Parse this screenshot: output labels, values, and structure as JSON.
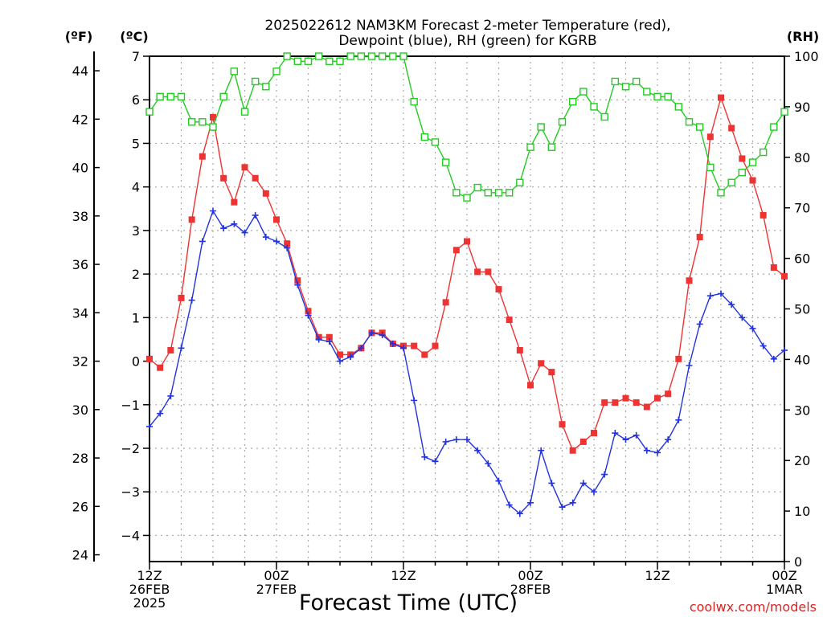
{
  "chart_data": {
    "type": "line",
    "title_line1": "2025022612 NAM3KM Forecast 2-meter Temperature (red),",
    "title_line2": "Dewpoint (blue), RH (green) for KGRB",
    "xlabel": "Forecast Time (UTC)",
    "credit": "coolwx.com/models",
    "unit_f": "(ºF)",
    "unit_c": "(ºC)",
    "unit_rh": "(RH)",
    "x_ticks": [
      {
        "h": 0,
        "lines": [
          "12Z",
          "26FEB",
          "2025"
        ]
      },
      {
        "h": 12,
        "lines": [
          "00Z",
          "27FEB"
        ]
      },
      {
        "h": 24,
        "lines": [
          "12Z"
        ]
      },
      {
        "h": 36,
        "lines": [
          "00Z",
          "28FEB"
        ]
      },
      {
        "h": 48,
        "lines": [
          "12Z"
        ]
      },
      {
        "h": 60,
        "lines": [
          "00Z",
          "1MAR"
        ]
      }
    ],
    "x_range_hours": [
      0,
      60
    ],
    "c_ticks": [
      -4,
      -3,
      -2,
      -1,
      0,
      1,
      2,
      3,
      4,
      5,
      6,
      7
    ],
    "c_range": [
      -4.6,
      7
    ],
    "f_ticks": [
      24,
      26,
      28,
      30,
      32,
      34,
      36,
      38,
      40,
      42,
      44
    ],
    "rh_ticks": [
      0,
      10,
      20,
      30,
      40,
      50,
      60,
      70,
      80,
      90,
      100
    ],
    "rh_range": [
      0,
      100
    ],
    "colors": {
      "temperature": "#ee3333",
      "dewpoint": "#2233dd",
      "rh": "#22cc22",
      "grid": "#aaaaaa",
      "credit": "#dd2222"
    },
    "hours": [
      0,
      1,
      2,
      3,
      4,
      5,
      6,
      7,
      8,
      9,
      10,
      11,
      12,
      13,
      14,
      15,
      16,
      17,
      18,
      19,
      20,
      21,
      22,
      23,
      24,
      25,
      26,
      27,
      28,
      29,
      30,
      31,
      32,
      33,
      34,
      35,
      36,
      37,
      38,
      39,
      40,
      41,
      42,
      43,
      44,
      45,
      46,
      47,
      48,
      49,
      50,
      51,
      52,
      53,
      54,
      55,
      56,
      57,
      58,
      59,
      60
    ],
    "series": [
      {
        "name": "Temperature",
        "unit": "C",
        "values": [
          0.05,
          -0.15,
          0.25,
          1.45,
          3.25,
          4.7,
          5.6,
          4.2,
          3.65,
          4.45,
          4.2,
          3.85,
          3.25,
          2.7,
          1.85,
          1.15,
          0.55,
          0.55,
          0.15,
          0.15,
          0.3,
          0.65,
          0.65,
          0.4,
          0.35,
          0.35,
          0.15,
          0.35,
          1.35,
          2.55,
          2.75,
          2.05,
          2.05,
          1.65,
          0.95,
          0.25,
          -0.55,
          -0.05,
          -0.25,
          -1.45,
          -2.05,
          -1.85,
          -1.65,
          -0.95,
          -0.95,
          -0.85,
          -0.95,
          -1.05,
          -0.85,
          -0.75,
          0.05,
          1.85,
          2.85,
          5.15,
          6.05,
          5.35,
          4.65,
          4.15,
          3.35,
          2.15,
          1.95
        ]
      },
      {
        "name": "Dewpoint",
        "unit": "C",
        "values": [
          -1.5,
          -1.2,
          -0.8,
          0.3,
          1.4,
          2.75,
          3.45,
          3.05,
          3.15,
          2.95,
          3.35,
          2.85,
          2.75,
          2.6,
          1.75,
          1.05,
          0.5,
          0.45,
          0.0,
          0.1,
          0.3,
          0.65,
          0.6,
          0.4,
          0.3,
          -0.9,
          -2.2,
          -2.3,
          -1.85,
          -1.8,
          -1.8,
          -2.05,
          -2.35,
          -2.75,
          -3.3,
          -3.5,
          -3.25,
          -2.05,
          -2.8,
          -3.35,
          -3.25,
          -2.8,
          -3.0,
          -2.6,
          -1.65,
          -1.8,
          -1.7,
          -2.05,
          -2.1,
          -1.8,
          -1.35,
          -0.1,
          0.85,
          1.5,
          1.55,
          1.3,
          1.0,
          0.75,
          0.35,
          0.05,
          0.25
        ]
      },
      {
        "name": "RH",
        "unit": "%",
        "values": [
          89,
          92,
          92,
          92,
          87,
          87,
          86,
          92,
          97,
          89,
          95,
          94,
          97,
          100,
          99,
          99,
          100,
          99,
          99,
          100,
          100,
          100,
          100,
          100,
          100,
          91,
          84,
          83,
          79,
          73,
          72,
          74,
          73,
          73,
          73,
          75,
          82,
          86,
          82,
          87,
          91,
          93,
          90,
          88,
          95,
          94,
          95,
          93,
          92,
          92,
          90,
          87,
          86,
          78,
          73,
          75,
          77,
          79,
          81,
          86,
          89
        ]
      }
    ]
  }
}
